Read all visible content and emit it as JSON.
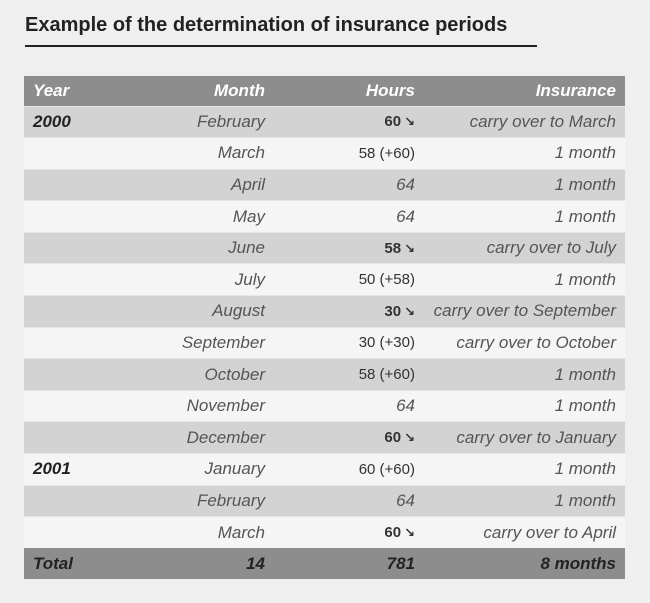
{
  "title": "Example of the determination of insurance periods",
  "headers": {
    "year": "Year",
    "month": "Month",
    "hours": "Hours",
    "insurance": "Insurance"
  },
  "arrow_icon": "arrow-down-right-icon",
  "rows": [
    {
      "year": "2000",
      "month": "February",
      "hours": "60",
      "arrow": "↘",
      "insurance": "carry over to March"
    },
    {
      "year": "",
      "month": "March",
      "hours": "58 (+60)",
      "arrow": "",
      "insurance": "1 month"
    },
    {
      "year": "",
      "month": "April",
      "hours": "64",
      "arrow": "",
      "insurance": "1 month"
    },
    {
      "year": "",
      "month": "May",
      "hours": "64",
      "arrow": "",
      "insurance": "1 month"
    },
    {
      "year": "",
      "month": "June",
      "hours": "58",
      "arrow": "↘",
      "insurance": "carry over to July"
    },
    {
      "year": "",
      "month": "July",
      "hours": "50 (+58)",
      "arrow": "",
      "insurance": "1 month"
    },
    {
      "year": "",
      "month": "August",
      "hours": "30",
      "arrow": "↘",
      "insurance": "carry over to September"
    },
    {
      "year": "",
      "month": "September",
      "hours": "30 (+30)",
      "arrow": "",
      "insurance": "carry over to October"
    },
    {
      "year": "",
      "month": "October",
      "hours": "58 (+60)",
      "arrow": "",
      "insurance": "1 month"
    },
    {
      "year": "",
      "month": "November",
      "hours": "64",
      "arrow": "",
      "insurance": "1 month"
    },
    {
      "year": "",
      "month": "December",
      "hours": "60",
      "arrow": "↘",
      "insurance": "carry over to January"
    },
    {
      "year": "2001",
      "month": "January",
      "hours": "60 (+60)",
      "arrow": "",
      "insurance": "1 month"
    },
    {
      "year": "",
      "month": "February",
      "hours": "64",
      "arrow": "",
      "insurance": "1 month"
    },
    {
      "year": "",
      "month": "March",
      "hours": "60",
      "arrow": "↘",
      "insurance": "carry over to April"
    }
  ],
  "total": {
    "label": "Total",
    "months": "14",
    "hours": "781",
    "insurance": "8 months"
  }
}
